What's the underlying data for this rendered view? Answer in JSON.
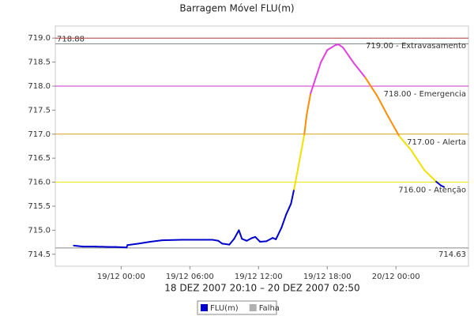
{
  "chart_data": {
    "type": "line",
    "title": "Barragem Móvel FLU(m)",
    "x_label": "18 DEZ 2007 20:10 – 20 DEZ 2007 02:50",
    "xlim": [
      "2007-12-18T18:15",
      "2007-12-20T06:20"
    ],
    "xticks": [
      {
        "value": "2007-12-19T00:00",
        "label": "19/12 00:00"
      },
      {
        "value": "2007-12-19T06:00",
        "label": "19/12 06:00"
      },
      {
        "value": "2007-12-19T12:00",
        "label": "19/12 12:00"
      },
      {
        "value": "2007-12-19T18:00",
        "label": "19/12 18:00"
      },
      {
        "value": "2007-12-20T00:00",
        "label": "20/12 00:00"
      }
    ],
    "ylim": [
      714.25,
      719.25
    ],
    "yticks": [
      714.5,
      {
        "value": 715,
        "label": "715.0"
      },
      715.5,
      {
        "value": 716,
        "label": "716.0"
      },
      716.5,
      {
        "value": 717,
        "label": "717.0"
      },
      717.5,
      {
        "value": 718,
        "label": "718.0"
      },
      718.5,
      {
        "value": 719,
        "label": "719.0"
      }
    ],
    "series": [
      {
        "name": "FLU(m)",
        "color": "#0000cc",
        "x": [
          "2007-12-18T19:52",
          "2007-12-18T20:41",
          "2007-12-18T21:43",
          "2007-12-18T22:58",
          "2007-12-18T23:31",
          "2007-12-19T00:29",
          "2007-12-19T00:33",
          "2007-12-19T01:31",
          "2007-12-19T02:33",
          "2007-12-19T03:35",
          "2007-12-19T05:19",
          "2007-12-19T08:00",
          "2007-12-19T08:29",
          "2007-12-19T08:50",
          "2007-12-19T09:27",
          "2007-12-19T09:52",
          "2007-12-19T10:17",
          "2007-12-19T10:33",
          "2007-12-19T10:58",
          "2007-12-19T11:27",
          "2007-12-19T11:43",
          "2007-12-19T12:08",
          "2007-12-19T12:41",
          "2007-12-19T13:14",
          "2007-12-19T13:31",
          "2007-12-19T14:00",
          "2007-12-19T14:25",
          "2007-12-19T14:50",
          "2007-12-19T15:06",
          "2007-12-19T15:23",
          "2007-12-19T16:00",
          "2007-12-19T16:12",
          "2007-12-19T16:33",
          "2007-12-19T17:02",
          "2007-12-19T17:27",
          "2007-12-19T18:00",
          "2007-12-19T18:41",
          "2007-12-19T18:58",
          "2007-12-19T19:23",
          "2007-12-19T20:21",
          "2007-12-19T21:19",
          "2007-12-19T22:21",
          "2007-12-19T23:19",
          "2007-12-20T00:17",
          "2007-12-20T01:19",
          "2007-12-20T02:29",
          "2007-12-20T03:31",
          "2007-12-20T03:56",
          "2007-12-20T04:12"
        ],
        "values": [
          714.68,
          714.66,
          714.66,
          714.65,
          714.65,
          714.64,
          714.69,
          714.72,
          714.76,
          714.79,
          714.8,
          714.8,
          714.78,
          714.72,
          714.7,
          714.82,
          715.0,
          714.82,
          714.78,
          714.84,
          714.86,
          714.76,
          714.77,
          714.84,
          714.81,
          715.05,
          715.33,
          715.55,
          715.85,
          716.2,
          717.0,
          717.4,
          717.85,
          718.2,
          718.5,
          718.75,
          718.85,
          718.87,
          718.8,
          718.47,
          718.18,
          717.8,
          717.37,
          716.96,
          716.67,
          716.25,
          716.01,
          715.93,
          715.9
        ]
      }
    ],
    "thresholds": [
      {
        "value": 719,
        "label": "719.00 - Extravasamento",
        "line_color": "#b03a3a",
        "data_color": "#b03a3a"
      },
      {
        "value": 718,
        "label": "718.00 - Emergencia",
        "line_color": "#cc33cc",
        "data_color": "#e040e0"
      },
      {
        "value": 717,
        "label": "717.00 - Alerta",
        "line_color": "#d4a017",
        "data_color": "#ff8c00"
      },
      {
        "value": 716,
        "label": "716.00 - Atenção",
        "line_color": "#e6e600",
        "data_color": "#f2e000"
      }
    ],
    "reference_lines": [
      {
        "value": 718.88,
        "label": "718.88",
        "color": "#888888",
        "label_position": "left"
      },
      {
        "value": 714.63,
        "label": "714.63",
        "color": "#888888",
        "label_position": "right"
      }
    ],
    "legend": [
      {
        "name": "FLU(m)",
        "color": "#0000cc"
      },
      {
        "name": "Falha",
        "color": "#b0b0b0"
      }
    ]
  }
}
